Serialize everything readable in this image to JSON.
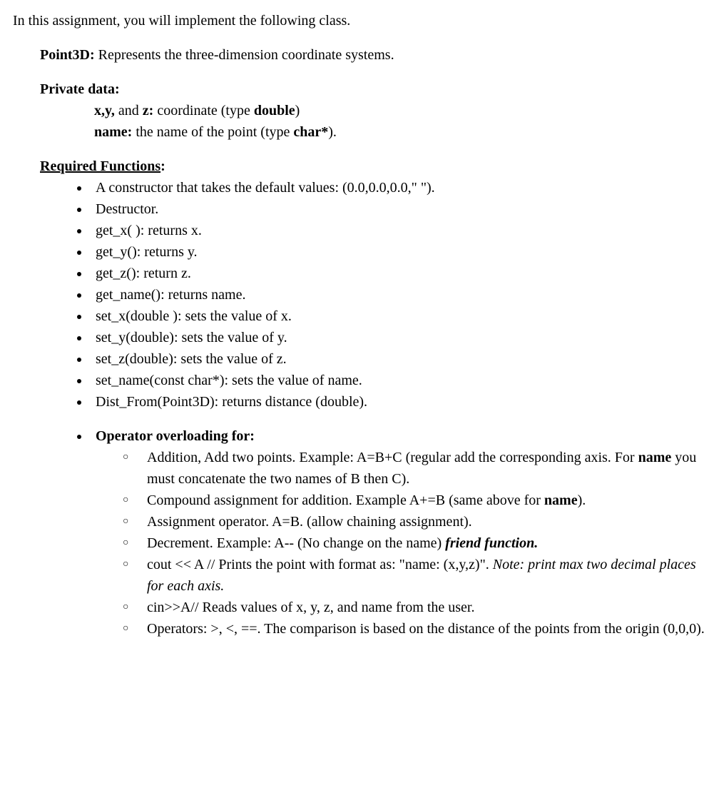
{
  "intro": "In this assignment, you will implement the following class.",
  "class_def": {
    "name": "Point3D:",
    "description": " Represents the three-dimension coordinate systems."
  },
  "private_data": {
    "heading": "Private data:",
    "line1_bold": "x,y,",
    "line1_mid": " and ",
    "line1_bold2": "z:",
    "line1_rest": "  coordinate (type ",
    "line1_type": "double",
    "line1_end": ")",
    "line2_bold": "name:",
    "line2_rest": " the name of the point (type ",
    "line2_type": "char*",
    "line2_end": ")."
  },
  "required_functions": {
    "heading": "Required Functions",
    "heading_colon": ":",
    "items": [
      "A constructor that takes the default values: (0.0,0.0,0.0,\" \").",
      "Destructor.",
      "get_x( ): returns x.",
      "get_y(): returns y.",
      "get_z(): return z.",
      "get_name(): returns name.",
      "set_x(double ): sets the value of x.",
      "set_y(double): sets the value of y.",
      "set_z(double): sets the value of z.",
      "set_name(const char*): sets the value of name.",
      "Dist_From(Point3D): returns distance (double)."
    ]
  },
  "operator_overloading": {
    "heading": "Operator overloading for:",
    "sub_items": {
      "addition": {
        "p1": "Addition, Add two points. Example: A=B+C (regular add the corresponding axis. For ",
        "p2_bold": "name",
        "p3": " you must concatenate the two names of B then C)."
      },
      "compound": {
        "p1": "Compound assignment for addition. Example A+=B (same above for ",
        "p2_bold": "name",
        "p3": ")."
      },
      "assignment": "Assignment operator. A=B. (allow chaining assignment).",
      "decrement": {
        "p1": "Decrement. Example: A-- (No change on the name) ",
        "p2_bolditalic": "friend function."
      },
      "cout": {
        "p1": "cout << A // Prints the point with format as:  \"name: (x,y,z)\". ",
        "p2_italic": "Note: print max two decimal places for each axis."
      },
      "cin": "cin>>A// Reads values of x, y, z, and name from the user.",
      "operators": "Operators: >, <, ==. The comparison is based on the distance of the points from the origin (0,0,0)."
    }
  }
}
